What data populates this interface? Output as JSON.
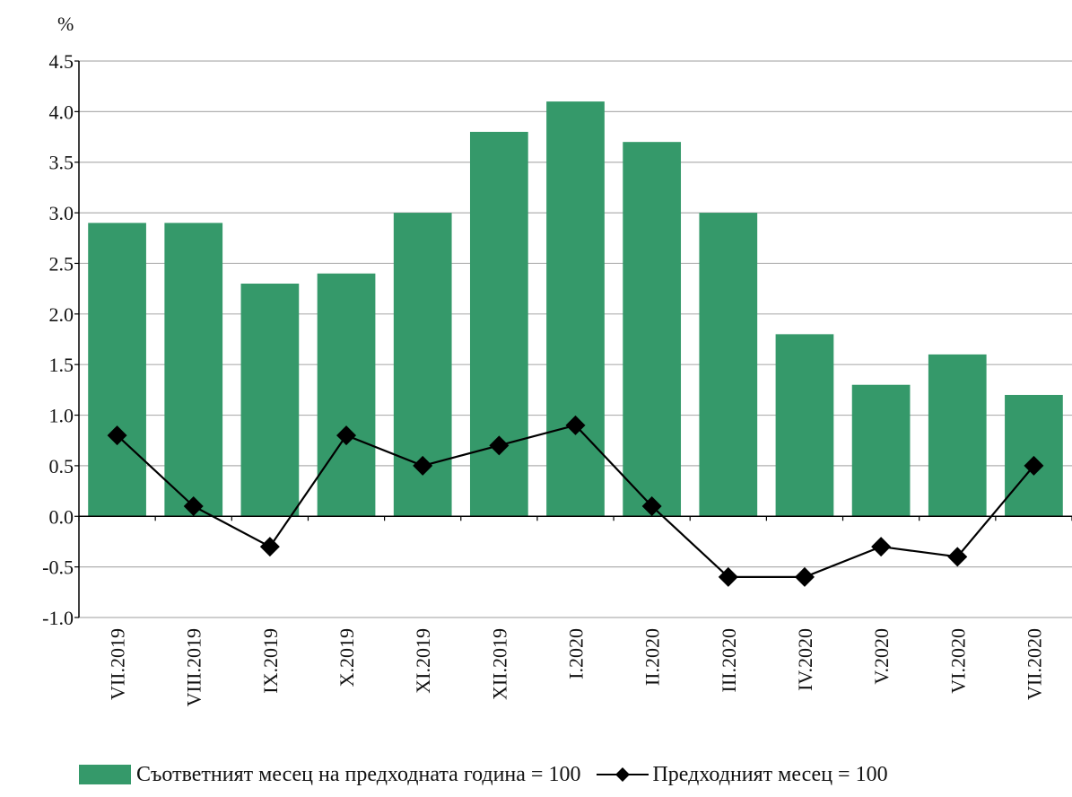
{
  "colors": {
    "bar": "#35996a",
    "line": "#000000",
    "grid": "#b0b0b0",
    "axis": "#000000"
  },
  "chart_data": {
    "type": "bar",
    "unit_label": "%",
    "categories": [
      "VII.2019",
      "VIII.2019",
      "IX.2019",
      "X.2019",
      "XI.2019",
      "XII.2019",
      "I.2020",
      "II.2020",
      "III.2020",
      "IV.2020",
      "V.2020",
      "VI.2020",
      "VII.2020"
    ],
    "series": [
      {
        "name": "Съответният месец на предходната година = 100",
        "type": "bar",
        "values": [
          2.9,
          2.9,
          2.3,
          2.4,
          3.0,
          3.8,
          4.1,
          3.7,
          3.0,
          1.8,
          1.3,
          1.6,
          1.2
        ]
      },
      {
        "name": "Предходният месец = 100",
        "type": "line",
        "marker": "diamond",
        "values": [
          0.8,
          0.1,
          -0.3,
          0.8,
          0.5,
          0.7,
          0.9,
          0.1,
          -0.6,
          -0.6,
          -0.3,
          -0.4,
          0.5
        ]
      }
    ],
    "ylim": [
      -1.0,
      4.5
    ],
    "yticks": [
      "-1.0",
      "-0.5",
      "0.0",
      "0.5",
      "1.0",
      "1.5",
      "2.0",
      "2.5",
      "3.0",
      "3.5",
      "4.0",
      "4.5"
    ],
    "grid": true,
    "legend_position": "bottom"
  }
}
